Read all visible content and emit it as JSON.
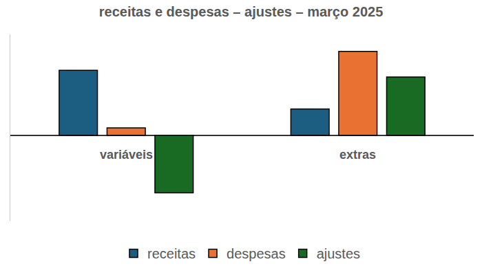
{
  "chart_data": {
    "type": "bar",
    "title": "receitas e despesas – ajustes – março 2025",
    "categories": [
      "variáveis",
      "extras"
    ],
    "series": [
      {
        "name": "receitas",
        "color": "#1b5e82",
        "values": [
          96,
          39
        ]
      },
      {
        "name": "despesas",
        "color": "#e97132",
        "values": [
          11,
          124
        ]
      },
      {
        "name": "ajustes",
        "color": "#196b24",
        "values": [
          -85,
          86
        ]
      }
    ],
    "ylim": [
      -126,
      149
    ],
    "tick_labels": false,
    "grid": false,
    "legend": "bottom"
  }
}
